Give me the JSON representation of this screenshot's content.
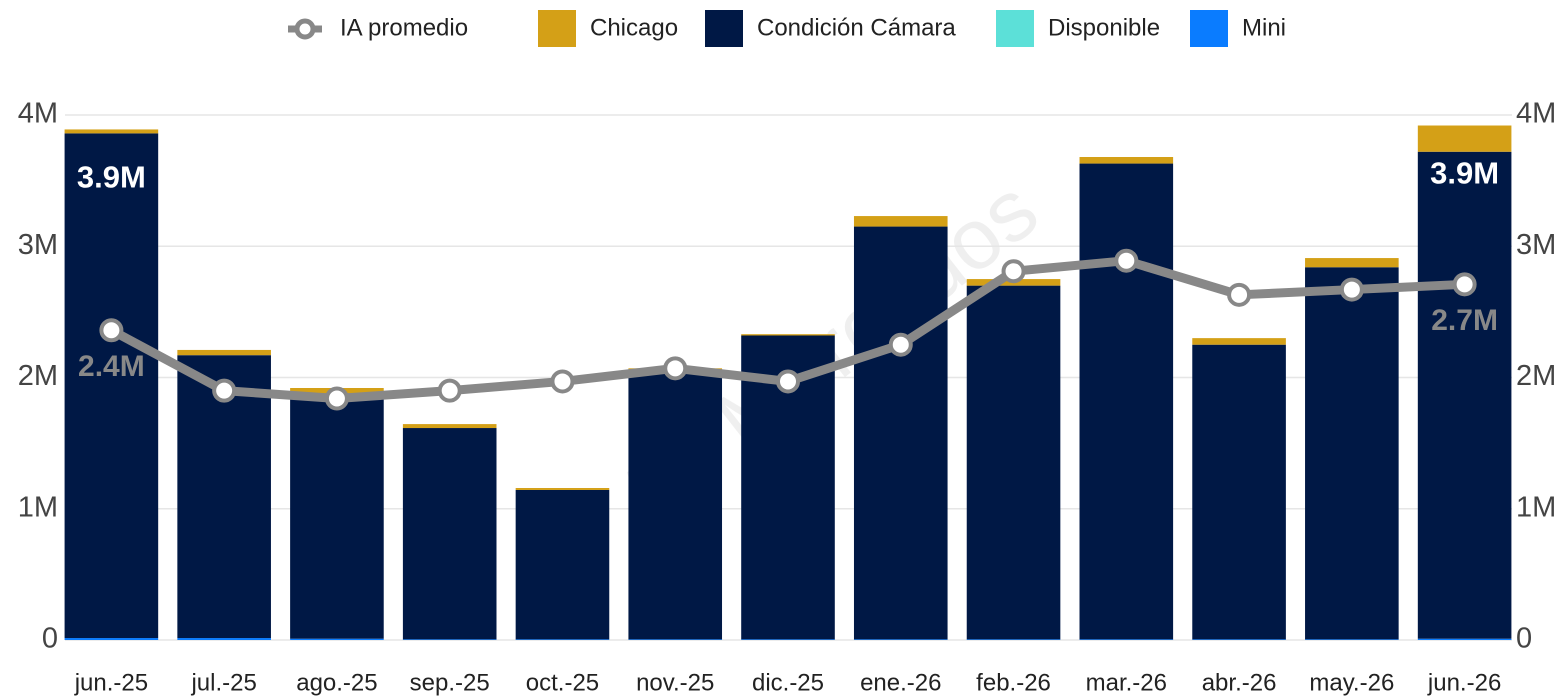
{
  "chart_data": {
    "type": "bar",
    "stacked": true,
    "watermark": "A3 Mercados",
    "categories": [
      "jun.-25",
      "jul.-25",
      "ago.-25",
      "sep.-25",
      "oct.-25",
      "nov.-25",
      "dic.-25",
      "ene.-26",
      "feb.-26",
      "mar.-26",
      "abr.-26",
      "may.-26",
      "jun.-26"
    ],
    "series": [
      {
        "name": "IA promedio",
        "type": "line",
        "axis": "y2",
        "color": "#888888",
        "values": [
          2360000,
          1900000,
          1840000,
          1900000,
          1970000,
          2070000,
          1970000,
          2250000,
          2810000,
          2890000,
          2630000,
          2670000,
          2710000
        ],
        "value_labels": [
          "2.4M",
          null,
          null,
          null,
          null,
          null,
          null,
          null,
          null,
          null,
          null,
          null,
          "2.7M"
        ]
      },
      {
        "name": "Chicago",
        "color": "#d4a017",
        "values": [
          30000,
          40000,
          40000,
          30000,
          15000,
          10000,
          10000,
          80000,
          50000,
          50000,
          50000,
          70000,
          200000
        ]
      },
      {
        "name": "Condición Cámara",
        "color": "#001845",
        "values": [
          3845000,
          2155000,
          1870000,
          1610000,
          1138000,
          2055000,
          2315000,
          3145000,
          2695000,
          3625000,
          2245000,
          2835000,
          3710000
        ]
      },
      {
        "name": "Disponible",
        "color": "#5ce0d8",
        "values": [
          0,
          0,
          0,
          0,
          0,
          0,
          0,
          0,
          0,
          0,
          0,
          0,
          0
        ]
      },
      {
        "name": "Mini",
        "color": "#0a7cff",
        "values": [
          15000,
          15000,
          10000,
          5000,
          5000,
          5000,
          5000,
          5000,
          5000,
          5000,
          5000,
          5000,
          10000
        ]
      }
    ],
    "total_labels": [
      "3.9M",
      null,
      null,
      null,
      null,
      null,
      null,
      null,
      null,
      null,
      null,
      null,
      "3.9M"
    ],
    "ylim": [
      0,
      4000000
    ],
    "yticks": [
      0,
      {
        "value": 1000000,
        "label": "1M"
      },
      {
        "value": 2000000,
        "label": "2M"
      },
      {
        "value": 3000000,
        "label": "3M"
      },
      {
        "value": 4000000,
        "label": "4M"
      }
    ],
    "y2lim": [
      0,
      4000000
    ],
    "y2ticks": [
      0,
      {
        "value": 1000000,
        "label": "1M"
      },
      {
        "value": 2000000,
        "label": "2M"
      },
      {
        "value": 3000000,
        "label": "3M"
      },
      {
        "value": 4000000,
        "label": "4M"
      }
    ],
    "grid": true,
    "legend": "top"
  }
}
